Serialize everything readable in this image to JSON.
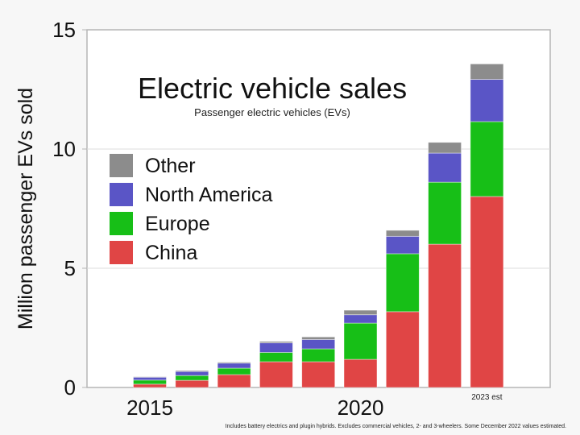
{
  "chart_data": {
    "type": "bar",
    "stacked": true,
    "title": "Electric vehicle sales",
    "subtitle": "Passenger electric vehicles (EVs)",
    "xlabel": "",
    "ylabel": "Million passenger EVs sold",
    "ylim": [
      0,
      15
    ],
    "yticks": [
      0,
      5,
      10,
      15
    ],
    "ytick_labels": [
      "0",
      "5",
      "10",
      "15"
    ],
    "categories": [
      "2015",
      "2016",
      "2017",
      "2018",
      "2019",
      "2020",
      "2021",
      "2022",
      "2023"
    ],
    "xtick_labels": [
      {
        "category": "2015",
        "label": "2015"
      },
      {
        "category": "2020",
        "label": "2020"
      }
    ],
    "grid": true,
    "legend_position": "left",
    "series": [
      {
        "name": "China",
        "color": "#e04545",
        "values": [
          0.14,
          0.3,
          0.54,
          1.08,
          1.08,
          1.18,
          3.18,
          6.01,
          8.01
        ]
      },
      {
        "name": "Europe",
        "color": "#17bf17",
        "values": [
          0.17,
          0.2,
          0.27,
          0.39,
          0.54,
          1.52,
          2.43,
          2.6,
          3.14
        ]
      },
      {
        "name": "North America",
        "color": "#5a55c6",
        "values": [
          0.12,
          0.17,
          0.21,
          0.4,
          0.39,
          0.35,
          0.73,
          1.22,
          1.77
        ]
      },
      {
        "name": "Other",
        "color": "#8c8c8c",
        "values": [
          0.02,
          0.04,
          0.04,
          0.06,
          0.11,
          0.19,
          0.25,
          0.45,
          0.65
        ]
      }
    ],
    "legend_order": [
      "Other",
      "North America",
      "Europe",
      "China"
    ],
    "annotations": [
      {
        "category": "2023",
        "text": "2023 est"
      }
    ],
    "footnote": "Includes battery electrics and plugin hybrids. Excludes commercial vehicles, 2- and 3-wheelers. Some December 2022 values estimated."
  }
}
